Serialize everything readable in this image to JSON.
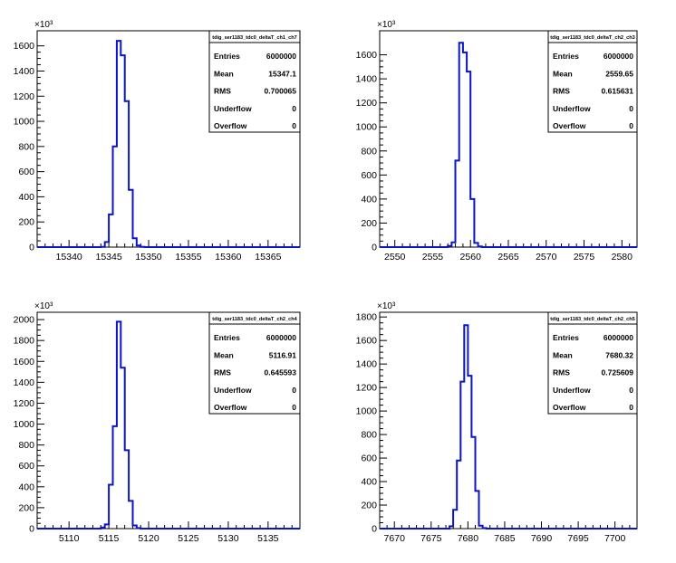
{
  "chart_data": [
    {
      "type": "histogram",
      "exponent_label": "×10³",
      "xlim": [
        15336,
        15369
      ],
      "ylim": [
        0,
        1720
      ],
      "x_ticks": [
        15340,
        15345,
        15350,
        15355,
        15360,
        15365
      ],
      "y_ticks": [
        0,
        200,
        400,
        600,
        800,
        1000,
        1200,
        1400,
        1600
      ],
      "bin_edges": [
        15344,
        15344.5,
        15345,
        15345.5,
        15346,
        15346.5,
        15347,
        15347.5,
        15348,
        15348.5,
        15349,
        15349.5,
        15350
      ],
      "counts": [
        2,
        40,
        260,
        800,
        1640,
        1525,
        1160,
        455,
        70,
        12,
        2,
        0
      ],
      "stats": {
        "title": "tdig_ser1183_tdc0_deltaT_ch1_ch7",
        "rows": [
          {
            "label": "Entries",
            "value": "6000000"
          },
          {
            "label": "Mean",
            "value": "15347.1"
          },
          {
            "label": "RMS",
            "value": "0.700065"
          },
          {
            "label": "Underflow",
            "value": "0"
          },
          {
            "label": "Overflow",
            "value": "0"
          }
        ]
      }
    },
    {
      "type": "histogram",
      "exponent_label": "×10³",
      "xlim": [
        2548,
        2582
      ],
      "ylim": [
        0,
        1800
      ],
      "x_ticks": [
        2550,
        2555,
        2560,
        2565,
        2570,
        2575,
        2580
      ],
      "y_ticks": [
        0,
        200,
        400,
        600,
        800,
        1000,
        1200,
        1400,
        1600
      ],
      "bin_edges": [
        2557,
        2557.5,
        2558,
        2558.5,
        2559,
        2559.5,
        2560,
        2560.5,
        2561,
        2561.5,
        2562
      ],
      "counts": [
        10,
        40,
        720,
        1700,
        1620,
        1460,
        400,
        35,
        5,
        0
      ],
      "stats": {
        "title": "tdig_ser1183_tdc0_deltaT_ch2_ch3",
        "rows": [
          {
            "label": "Entries",
            "value": "6000000"
          },
          {
            "label": "Mean",
            "value": "2559.65"
          },
          {
            "label": "RMS",
            "value": "0.615631"
          },
          {
            "label": "Underflow",
            "value": "0"
          },
          {
            "label": "Overflow",
            "value": "0"
          }
        ]
      }
    },
    {
      "type": "histogram",
      "exponent_label": "×10³",
      "xlim": [
        5106,
        5139
      ],
      "ylim": [
        0,
        2070
      ],
      "x_ticks": [
        5110,
        5115,
        5120,
        5125,
        5130,
        5135
      ],
      "y_ticks": [
        0,
        200,
        400,
        600,
        800,
        1000,
        1200,
        1400,
        1600,
        1800,
        2000
      ],
      "bin_edges": [
        5114,
        5114.5,
        5115,
        5115.5,
        5116,
        5116.5,
        5117,
        5117.5,
        5118,
        5118.5,
        5119,
        5119.5
      ],
      "counts": [
        10,
        40,
        420,
        980,
        1980,
        1540,
        750,
        265,
        30,
        5,
        0
      ],
      "stats": {
        "title": "tdig_ser1183_tdc0_deltaT_ch2_ch4",
        "rows": [
          {
            "label": "Entries",
            "value": "6000000"
          },
          {
            "label": "Mean",
            "value": "5116.91"
          },
          {
            "label": "RMS",
            "value": "0.645593"
          },
          {
            "label": "Underflow",
            "value": "0"
          },
          {
            "label": "Overflow",
            "value": "0"
          }
        ]
      }
    },
    {
      "type": "histogram",
      "exponent_label": "×10³",
      "xlim": [
        7668,
        7703
      ],
      "ylim": [
        0,
        1840
      ],
      "x_ticks": [
        7670,
        7675,
        7680,
        7685,
        7690,
        7695,
        7700
      ],
      "y_ticks": [
        0,
        200,
        400,
        600,
        800,
        1000,
        1200,
        1400,
        1600,
        1800
      ],
      "bin_edges": [
        7677.5,
        7678,
        7678.5,
        7679,
        7679.5,
        7680,
        7680.5,
        7681,
        7681.5,
        7682,
        7682.5,
        7683
      ],
      "counts": [
        20,
        160,
        580,
        1250,
        1730,
        1300,
        780,
        320,
        25,
        5,
        0
      ],
      "stats": {
        "title": "tdig_ser1183_tdc0_deltaT_ch2_ch5",
        "rows": [
          {
            "label": "Entries",
            "value": "6000000"
          },
          {
            "label": "Mean",
            "value": "7680.32"
          },
          {
            "label": "RMS",
            "value": "0.725609"
          },
          {
            "label": "Underflow",
            "value": "0"
          },
          {
            "label": "Overflow",
            "value": "0"
          }
        ]
      }
    }
  ],
  "colors": {
    "line": "#0a14c8",
    "axis": "#000000",
    "background": "#ffffff"
  }
}
